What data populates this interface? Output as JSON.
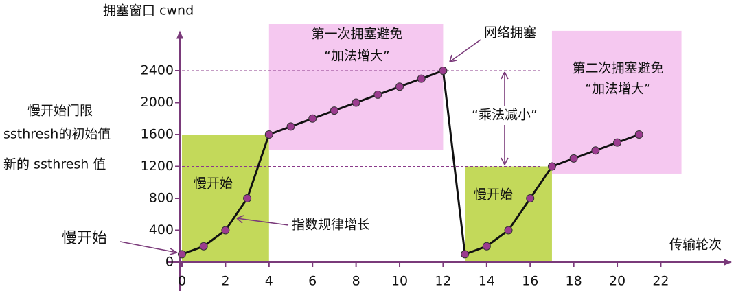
{
  "chart_data": {
    "type": "line",
    "y_label": "拥塞窗口 cwnd",
    "x_label": "传输轮次",
    "x": [
      0,
      1,
      2,
      3,
      4,
      5,
      6,
      7,
      8,
      9,
      10,
      11,
      12,
      13,
      14,
      15,
      16,
      17,
      18,
      19,
      20,
      21
    ],
    "series": [
      {
        "color": "#111111",
        "marker_color": "#9b3b8f",
        "values": [
          100,
          200,
          400,
          800,
          1600,
          1700,
          1800,
          1900,
          2000,
          2100,
          2200,
          2300,
          2400,
          100,
          200,
          400,
          800,
          1200,
          1300,
          1400,
          1500,
          1600
        ]
      }
    ],
    "xlim": [
      0,
      23.5
    ],
    "ylim": [
      0,
      2800
    ],
    "xticks": [
      0,
      2,
      4,
      6,
      8,
      10,
      12,
      14,
      16,
      18,
      20,
      22
    ],
    "yticks": [
      0,
      400,
      800,
      1200,
      1600,
      2000,
      2400
    ],
    "hlines": [
      2400,
      1200
    ],
    "regions": [
      {
        "x": [
          0,
          4
        ],
        "y": [
          0,
          1600
        ],
        "color": "#c3d95a"
      },
      {
        "x": [
          13,
          17
        ],
        "y": [
          0,
          1200
        ],
        "color": "#c3d95a"
      },
      {
        "x": [
          4,
          12
        ],
        "y": [
          1410,
          2985
        ],
        "color": "#f5c8f0"
      },
      {
        "x": [
          17,
          22.95
        ],
        "y": [
          1110,
          2900
        ],
        "color": "#f5c8f0"
      }
    ],
    "annotations": {
      "ca1_line1": "第一次拥塞避免",
      "ca1_line2": "“加法增大”",
      "ca2_line1": "第二次拥塞避免",
      "ca2_line2": "“加法增大”",
      "congestion": "网络拥塞",
      "mult_decrease": "“乘法减小”",
      "threshold_line1": "慢开始门限",
      "threshold_line2": "ssthresh的初始值",
      "new_threshold": "新的 ssthresh 值",
      "slow_start_left": "慢开始",
      "slow_start_1": "慢开始",
      "slow_start_2": "慢开始",
      "exponential": "指数规律增长"
    }
  }
}
